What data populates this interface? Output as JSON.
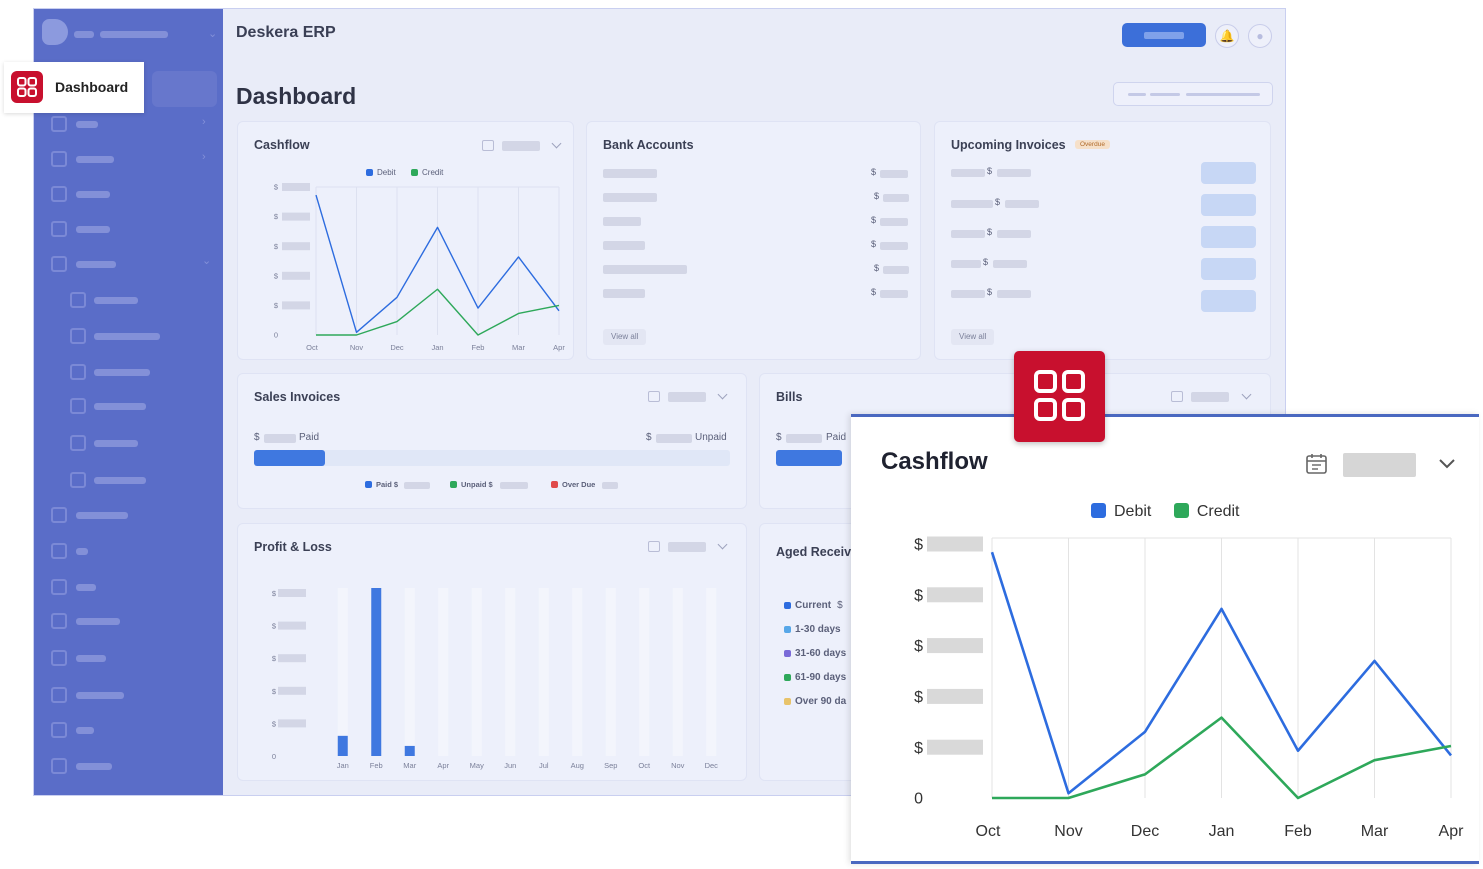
{
  "app": {
    "title": "Deskera ERP",
    "page_title": "Dashboard",
    "active_nav": "Dashboard"
  },
  "cards": {
    "cashflow": {
      "title": "Cashflow",
      "legend": [
        "Debit",
        "Credit"
      ]
    },
    "bank_accounts": {
      "title": "Bank Accounts",
      "currency": "$",
      "view_all": "View all"
    },
    "upcoming_invoices": {
      "title": "Upcoming Invoices",
      "badge": "Overdue",
      "currency": "$",
      "view_all": "View all"
    },
    "sales_invoices": {
      "title": "Sales Invoices",
      "currency": "$",
      "paid": "Paid",
      "unpaid": "Unpaid",
      "legend_paid": "Paid $",
      "legend_unpaid": "Unpaid $",
      "legend_overdue": "Over Due",
      "paid_fraction": 0.15
    },
    "bills": {
      "title": "Bills",
      "currency": "$",
      "paid": "Paid"
    },
    "profit_loss": {
      "title": "Profit & Loss",
      "currency": "$",
      "zero": "0"
    },
    "aged_receivable": {
      "title": "Aged Receiva",
      "buckets": [
        "Current",
        "1-30 days",
        "31-60 days",
        "61-90 days",
        "Over 90 da"
      ],
      "bucket_currency": "$"
    }
  },
  "zoom": {
    "title": "Cashflow",
    "legend_debit": "Debit",
    "legend_credit": "Credit",
    "y_currency": "$",
    "y_zero": "0"
  },
  "colors": {
    "debit": "#2d6cdf",
    "credit": "#2ea85a",
    "brand_red": "#c8102e",
    "sidebar": "#5a6dc8"
  },
  "chart_data": [
    {
      "type": "line",
      "title": "Cashflow",
      "x": [
        "Oct",
        "Nov",
        "Dec",
        "Jan",
        "Feb",
        "Mar",
        "Apr"
      ],
      "series": [
        {
          "name": "Debit",
          "values": [
            5.2,
            0.1,
            1.4,
            4.0,
            1.0,
            2.9,
            0.9
          ]
        },
        {
          "name": "Credit",
          "values": [
            0.0,
            0.0,
            0.5,
            1.7,
            0.0,
            0.8,
            1.1
          ]
        }
      ],
      "ylim": [
        0,
        5.5
      ],
      "ytick_labels": [
        "$",
        "$",
        "$",
        "$",
        "$",
        "0"
      ],
      "grid": true,
      "legend": "top-center"
    },
    {
      "type": "bar",
      "title": "Profit & Loss",
      "categories": [
        "Jan",
        "Feb",
        "Mar",
        "Apr",
        "May",
        "Jun",
        "Jul",
        "Aug",
        "Sep",
        "Oct",
        "Nov",
        "Dec"
      ],
      "values": [
        0.6,
        5.0,
        0.3,
        0,
        0,
        0,
        0,
        0,
        0,
        0,
        0,
        0
      ],
      "ylim": [
        0,
        5.0
      ],
      "ytick_labels": [
        "$",
        "$",
        "$",
        "$",
        "$",
        "0"
      ]
    }
  ]
}
